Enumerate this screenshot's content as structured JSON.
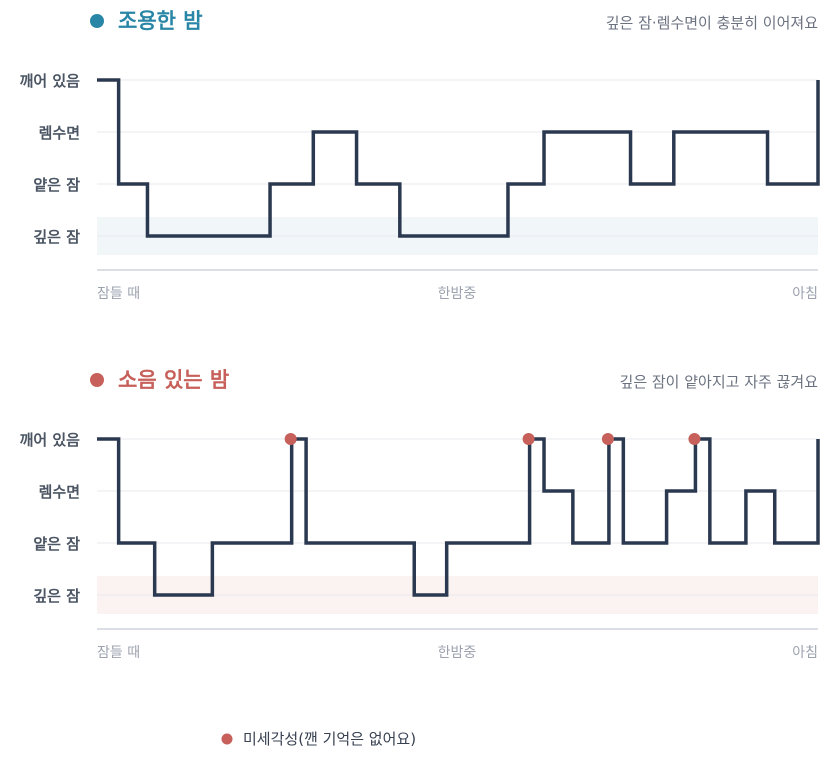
{
  "colors": {
    "line": "#2b3950",
    "teal": "#2a86a6",
    "red": "#c7605a",
    "grid": "#e8eaee",
    "axis": "#cfd4db",
    "deep_band_calm": "#f1f6f9",
    "deep_band_noisy": "#fbf3f2"
  },
  "chart_data": [
    {
      "type": "line",
      "step": true,
      "title": "조용한 밤",
      "subtitle": "깊은 잠·렘수면이 충분히 이어져요",
      "title_color": "#2a86a6",
      "y_categories": [
        "깨어 있음",
        "렘수면",
        "얕은 잠",
        "깊은 잠"
      ],
      "x_labels": [
        "잠들 때",
        "한밤중",
        "아침"
      ],
      "x_range": [
        0,
        100
      ],
      "series": [
        {
          "points": [
            {
              "x": 0,
              "stage": "깨어 있음"
            },
            {
              "x": 3,
              "stage": "얕은 잠"
            },
            {
              "x": 7,
              "stage": "깊은 잠"
            },
            {
              "x": 24,
              "stage": "얕은 잠"
            },
            {
              "x": 30,
              "stage": "렘수면"
            },
            {
              "x": 36,
              "stage": "얕은 잠"
            },
            {
              "x": 42,
              "stage": "깊은 잠"
            },
            {
              "x": 57,
              "stage": "얕은 잠"
            },
            {
              "x": 62,
              "stage": "렘수면"
            },
            {
              "x": 74,
              "stage": "얕은 잠"
            },
            {
              "x": 80,
              "stage": "렘수면"
            },
            {
              "x": 93,
              "stage": "얕은 잠"
            },
            {
              "x": 100,
              "stage": "깨어 있음"
            }
          ]
        }
      ],
      "arousals": []
    },
    {
      "type": "line",
      "step": true,
      "title": "소음 있는 밤",
      "subtitle": "깊은 잠이 얕아지고 자주 끊겨요",
      "title_color": "#c7605a",
      "y_categories": [
        "깨어 있음",
        "렘수면",
        "얕은 잠",
        "깊은 잠"
      ],
      "x_labels": [
        "잠들 때",
        "한밤중",
        "아침"
      ],
      "x_range": [
        0,
        100
      ],
      "series": [
        {
          "points": [
            {
              "x": 0,
              "stage": "깨어 있음"
            },
            {
              "x": 3,
              "stage": "얕은 잠"
            },
            {
              "x": 8,
              "stage": "깊은 잠"
            },
            {
              "x": 16,
              "stage": "얕은 잠"
            },
            {
              "x": 27,
              "stage": "깨어 있음"
            },
            {
              "x": 29,
              "stage": "얕은 잠"
            },
            {
              "x": 44,
              "stage": "깊은 잠"
            },
            {
              "x": 48.5,
              "stage": "얕은 잠"
            },
            {
              "x": 60,
              "stage": "깨어 있음"
            },
            {
              "x": 62,
              "stage": "렘수면"
            },
            {
              "x": 66,
              "stage": "얕은 잠"
            },
            {
              "x": 71,
              "stage": "깨어 있음"
            },
            {
              "x": 73,
              "stage": "얕은 잠"
            },
            {
              "x": 79,
              "stage": "렘수면"
            },
            {
              "x": 83,
              "stage": "깨어 있음"
            },
            {
              "x": 85,
              "stage": "얕은 잠"
            },
            {
              "x": 90,
              "stage": "렘수면"
            },
            {
              "x": 94,
              "stage": "얕은 잠"
            },
            {
              "x": 100,
              "stage": "깨어 있음"
            }
          ]
        }
      ],
      "arousals": [
        27,
        60,
        71,
        83
      ]
    }
  ],
  "legend": {
    "label": "미세각성(깬 기억은 없어요)"
  }
}
